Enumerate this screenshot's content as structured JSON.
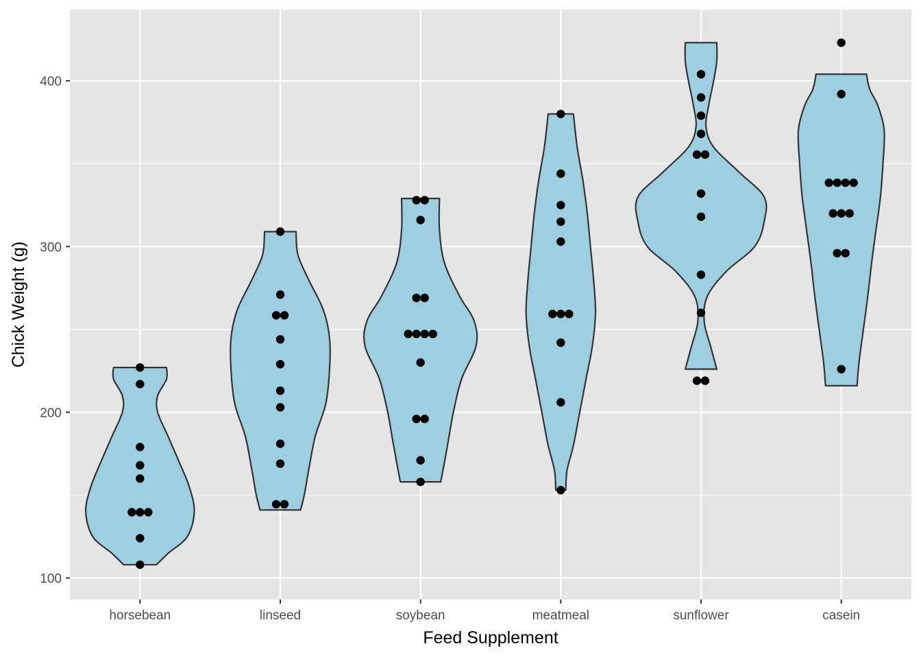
{
  "chart_data": {
    "type": "violin",
    "xlabel": "Feed Supplement",
    "ylabel": "Chick Weight (g)",
    "categories": [
      "horsebean",
      "linseed",
      "soybean",
      "meatmeal",
      "sunflower",
      "casein"
    ],
    "yticks": [
      100,
      200,
      300,
      400
    ],
    "ylim": [
      87,
      443
    ],
    "grid": true,
    "colors": {
      "panel": "#e5e5e5",
      "grid": "#ffffff",
      "violin_fill": "#9ecfe0",
      "violin_outline": "#333333",
      "point": "#000000"
    },
    "groups": [
      {
        "name": "horsebean",
        "points": [
          179,
          160,
          136,
          227,
          217,
          168,
          108,
          124,
          143,
          140
        ],
        "profile": [
          [
            108,
            0.26
          ],
          [
            115,
            0.45
          ],
          [
            125,
            0.75
          ],
          [
            140,
            0.86
          ],
          [
            155,
            0.78
          ],
          [
            170,
            0.62
          ],
          [
            185,
            0.45
          ],
          [
            200,
            0.28
          ],
          [
            210,
            0.28
          ],
          [
            220,
            0.42
          ],
          [
            227,
            0.42
          ]
        ]
      },
      {
        "name": "linseed",
        "points": [
          309,
          229,
          181,
          141,
          260,
          203,
          148,
          169,
          213,
          257,
          244,
          271
        ],
        "profile": [
          [
            141,
            0.32
          ],
          [
            150,
            0.38
          ],
          [
            165,
            0.45
          ],
          [
            185,
            0.55
          ],
          [
            205,
            0.72
          ],
          [
            225,
            0.78
          ],
          [
            245,
            0.78
          ],
          [
            262,
            0.68
          ],
          [
            280,
            0.45
          ],
          [
            295,
            0.28
          ],
          [
            309,
            0.25
          ]
        ]
      },
      {
        "name": "soybean",
        "points": [
          243,
          230,
          248,
          327,
          329,
          250,
          193,
          271,
          316,
          267,
          199,
          171,
          158,
          248
        ],
        "profile": [
          [
            158,
            0.32
          ],
          [
            170,
            0.38
          ],
          [
            185,
            0.45
          ],
          [
            200,
            0.52
          ],
          [
            220,
            0.65
          ],
          [
            240,
            0.88
          ],
          [
            255,
            0.85
          ],
          [
            270,
            0.62
          ],
          [
            290,
            0.38
          ],
          [
            310,
            0.3
          ],
          [
            329,
            0.3
          ]
        ]
      },
      {
        "name": "meatmeal",
        "points": [
          325,
          257,
          303,
          315,
          380,
          153,
          263,
          242,
          206,
          344,
          258
        ],
        "profile": [
          [
            153,
            0.08
          ],
          [
            165,
            0.1
          ],
          [
            180,
            0.2
          ],
          [
            200,
            0.3
          ],
          [
            220,
            0.4
          ],
          [
            240,
            0.5
          ],
          [
            260,
            0.55
          ],
          [
            280,
            0.52
          ],
          [
            300,
            0.47
          ],
          [
            320,
            0.42
          ],
          [
            340,
            0.35
          ],
          [
            360,
            0.26
          ],
          [
            380,
            0.2
          ]
        ]
      },
      {
        "name": "sunflower",
        "points": [
          368,
          390,
          379,
          260,
          404,
          318,
          352,
          359,
          216,
          222,
          283,
          332
        ],
        "profile": [
          [
            226,
            0.25
          ],
          [
            240,
            0.15
          ],
          [
            255,
            0.05
          ],
          [
            270,
            0.1
          ],
          [
            285,
            0.4
          ],
          [
            300,
            0.85
          ],
          [
            315,
            1.0
          ],
          [
            330,
            1.0
          ],
          [
            345,
            0.6
          ],
          [
            360,
            0.2
          ],
          [
            372,
            0.08
          ],
          [
            385,
            0.12
          ],
          [
            400,
            0.2
          ],
          [
            412,
            0.25
          ],
          [
            423,
            0.25
          ]
        ]
      },
      {
        "name": "casein",
        "points": [
          423,
          340,
          392,
          339,
          341,
          226,
          320,
          295,
          334,
          322,
          297,
          318
        ],
        "profile": [
          [
            216,
            0.25
          ],
          [
            230,
            0.28
          ],
          [
            250,
            0.35
          ],
          [
            270,
            0.42
          ],
          [
            290,
            0.48
          ],
          [
            310,
            0.55
          ],
          [
            330,
            0.62
          ],
          [
            350,
            0.66
          ],
          [
            370,
            0.68
          ],
          [
            385,
            0.58
          ],
          [
            395,
            0.45
          ],
          [
            404,
            0.4
          ]
        ]
      }
    ]
  }
}
